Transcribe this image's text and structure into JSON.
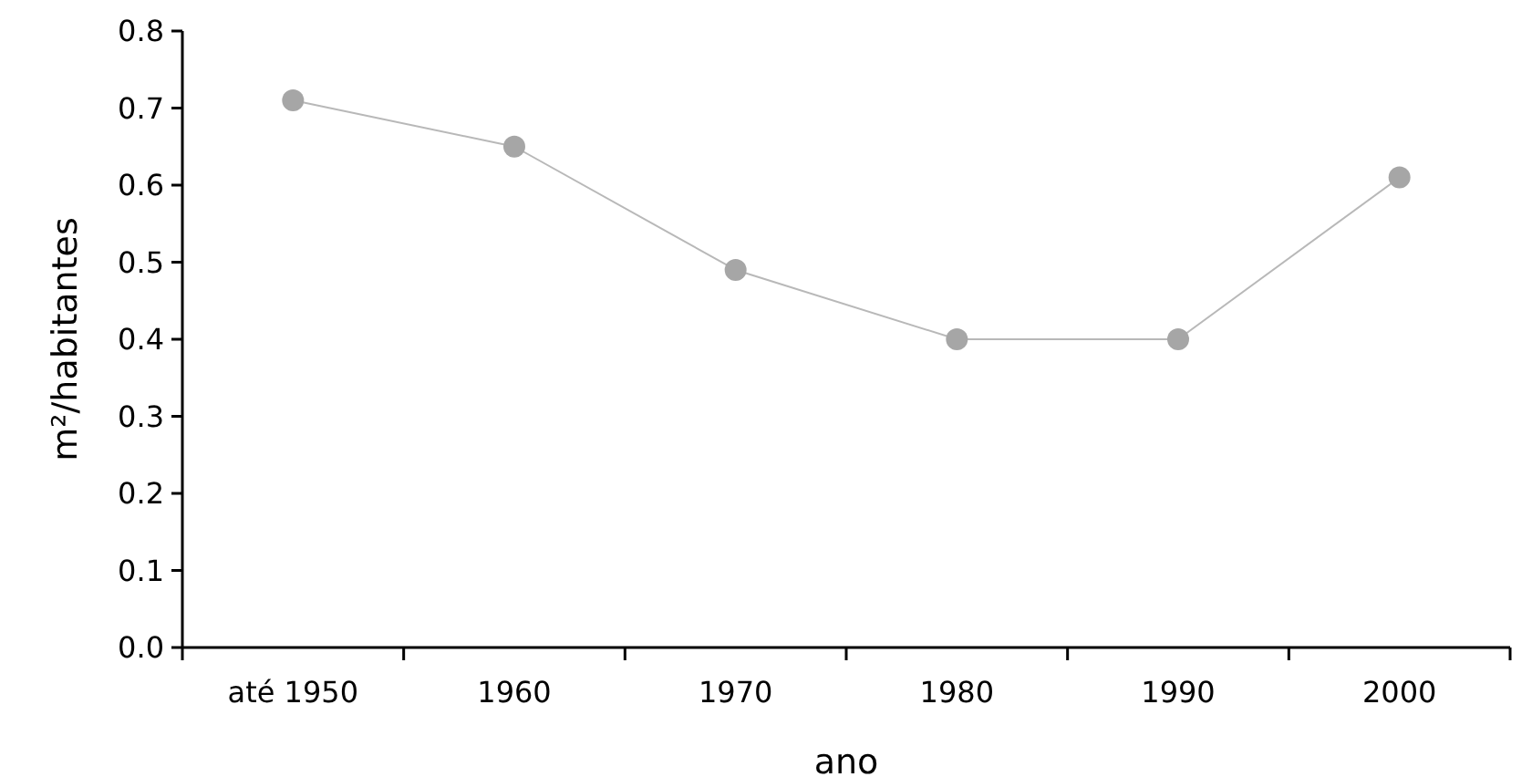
{
  "chart_data": {
    "type": "line",
    "xlabel": "ano",
    "ylabel": "m²/habitantes",
    "categories": [
      "até 1950",
      "1960",
      "1970",
      "1980",
      "1990",
      "2000"
    ],
    "series": [
      {
        "color": "#a6a6a6",
        "values": [
          0.71,
          0.65,
          0.49,
          0.4,
          0.4,
          0.61
        ]
      }
    ],
    "ylim": [
      0,
      0.8
    ],
    "yticks": [
      {
        "value": 0,
        "label": "0.0"
      },
      {
        "value": 0.1,
        "label": "0.1"
      },
      {
        "value": 0.2,
        "label": "0.2"
      },
      {
        "value": 0.3,
        "label": "0.3"
      },
      {
        "value": 0.4,
        "label": "0.4"
      },
      {
        "value": 0.5,
        "label": "0.5"
      },
      {
        "value": 0.6,
        "label": "0.6"
      },
      {
        "value": 0.7,
        "label": "0.7"
      },
      {
        "value": 0.8,
        "label": "0.8"
      }
    ],
    "marker": "circle",
    "line_style": "solid"
  }
}
